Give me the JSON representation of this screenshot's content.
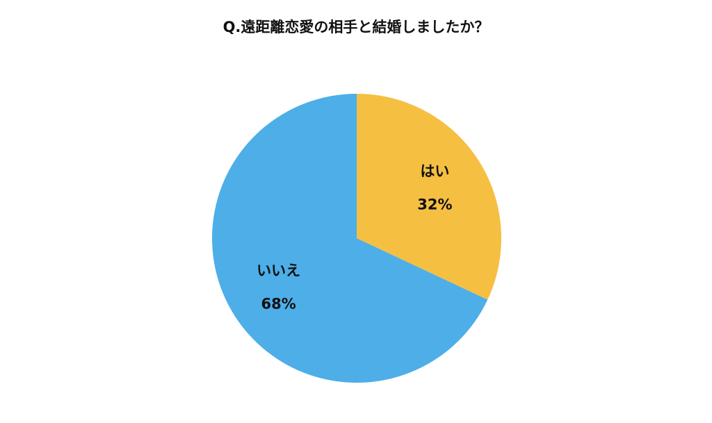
{
  "chart_data": {
    "type": "pie",
    "title": "Q.遠距離恋愛の相手と結婚しましたか？",
    "categories": [
      "はい",
      "いいえ"
    ],
    "values": [
      32,
      68
    ],
    "value_labels": [
      "32%",
      "68%"
    ],
    "colors": [
      "#f5bf42",
      "#4daee8"
    ]
  }
}
